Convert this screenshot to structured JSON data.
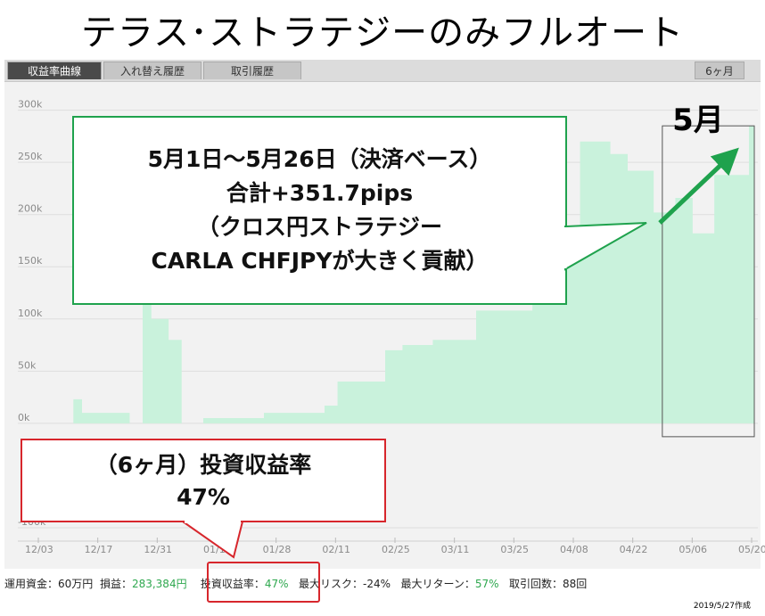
{
  "title": "テラス･ストラテジーのみフルオート",
  "tabs": [
    {
      "label": "収益率曲線",
      "active": true
    },
    {
      "label": "入れ替え履歴",
      "active": false
    },
    {
      "label": "取引履歴",
      "active": false
    }
  ],
  "period_button": "6ヶ月",
  "chart_data": {
    "type": "area",
    "color": "#c9f2dc",
    "y_tick_labels": [
      "300k",
      "250k",
      "200k",
      "150k",
      "100k",
      "50k",
      "0k",
      "-100k"
    ],
    "y_ticks": [
      300000,
      250000,
      200000,
      150000,
      100000,
      50000,
      0,
      -100000
    ],
    "ylim": [
      -112000,
      327000
    ],
    "x_tick_labels": [
      "12/03",
      "12/17",
      "12/31",
      "01/14",
      "01/28",
      "02/11",
      "02/25",
      "03/11",
      "03/25",
      "04/08",
      "04/22",
      "05/06",
      "05/20"
    ],
    "x": [
      "12/03",
      "12/15",
      "12/17",
      "12/28",
      "12/31",
      "01/02",
      "01/06",
      "01/09",
      "01/14",
      "01/24",
      "01/28",
      "02/11",
      "02/14",
      "02/25",
      "03/01",
      "03/08",
      "03/18",
      "03/25",
      "03/31",
      "04/05",
      "04/08",
      "04/11",
      "04/18",
      "04/22",
      "04/28",
      "05/03",
      "05/07",
      "05/09",
      "05/12",
      "05/20"
    ],
    "y": [
      0,
      23000,
      10000,
      0,
      130000,
      100000,
      80000,
      0,
      5000,
      5000,
      10000,
      17000,
      40000,
      70000,
      75000,
      80000,
      108000,
      108000,
      120000,
      150000,
      160000,
      270000,
      258000,
      242000,
      202000,
      216000,
      182000,
      182000,
      238000,
      285000
    ],
    "highlight_box": {
      "label": "5月",
      "x_start": "04/30",
      "x_end": "05/20"
    }
  },
  "green_callout": {
    "line1": "5月1日～5月26日（決済ベース）",
    "line2": "合計+351.7pips",
    "line3": "（クロス円ストラテジー",
    "line4": "CARLA CHFJPYが大きく貢献）"
  },
  "red_callout": {
    "line1": "（6ヶ月）投資収益率",
    "line2": "47%"
  },
  "stats": {
    "capital_label": "運用資金：",
    "capital_value": "60万円",
    "pl_label": "損益：",
    "pl_value": "283,384円",
    "roi_label": "投資収益率：",
    "roi_value": "47%",
    "risk_label": "最大リスク：",
    "risk_value": "-24%",
    "return_label": "最大リターン：",
    "return_value": "57%",
    "trades_label": "取引回数：",
    "trades_value": "88回"
  },
  "created_note": "2019/5/27作成"
}
